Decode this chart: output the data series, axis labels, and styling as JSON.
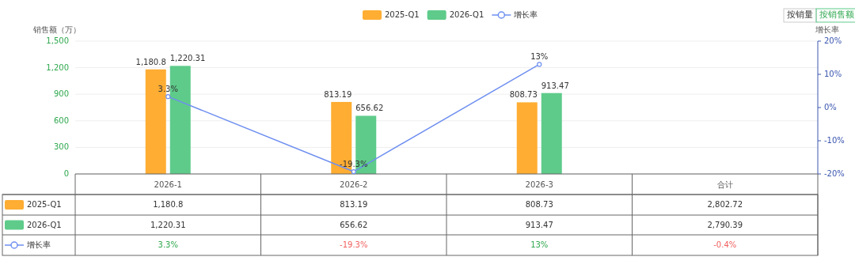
{
  "chart_data": {
    "type": "bar",
    "categories": [
      "2026-1",
      "2026-2",
      "2026-3",
      "合计"
    ],
    "series": [
      {
        "name": "2025-Q1",
        "color": "#ffad33",
        "values": [
          1180.8,
          813.19,
          808.73,
          null
        ],
        "value_labels": [
          "1,180.8",
          "813.19",
          "808.73",
          "2,802.72"
        ]
      },
      {
        "name": "2026-Q1",
        "color": "#5ecb8a",
        "values": [
          1220.31,
          656.62,
          913.47,
          null
        ],
        "value_labels": [
          "1,220.31",
          "656.62",
          "913.47",
          "2,790.39"
        ]
      },
      {
        "name": "增长率",
        "type": "line",
        "axis": "y2",
        "color": "#6e8ff0",
        "values": [
          3.3,
          -19.3,
          13,
          null
        ],
        "value_labels": [
          "3.3%",
          "-19.3%",
          "13%",
          "-0.4%"
        ]
      }
    ],
    "ylabel": "销售额（万）",
    "y2label": "增长率",
    "ylim": [
      0,
      1500
    ],
    "yticks": [
      0,
      300,
      600,
      900,
      {
        "value": 1200,
        "label": "1,200"
      },
      {
        "value": 1500,
        "label": "1,500"
      }
    ],
    "y2lim": [
      -20,
      20
    ],
    "y2ticks": [
      {
        "value": -20,
        "label": "-20%"
      },
      {
        "value": -10,
        "label": "-10%"
      },
      {
        "value": 0,
        "label": "0%"
      },
      {
        "value": 10,
        "label": "10%"
      },
      {
        "value": 20,
        "label": "20%"
      }
    ],
    "grid": "y",
    "legend": "top",
    "marker": "circle",
    "annotations": [
      "按销量",
      "按销售额"
    ]
  }
}
